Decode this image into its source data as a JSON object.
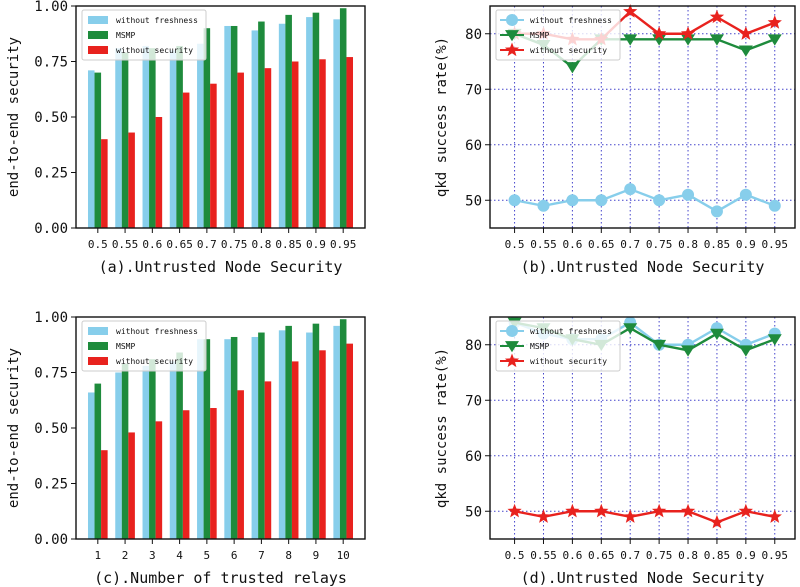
{
  "colors": {
    "freshness": "#87CEEB",
    "msmp": "#1E8B3C",
    "security": "#E8221E",
    "grid": "#4444CC",
    "frame": "#111111"
  },
  "chart_data": [
    {
      "id": "a",
      "type": "bar",
      "categories": [
        "0.5",
        "0.55",
        "0.6",
        "0.65",
        "0.7",
        "0.75",
        "0.8",
        "0.85",
        "0.9",
        "0.95"
      ],
      "series": [
        {
          "name": "without freshness",
          "values": [
            0.71,
            0.81,
            0.82,
            0.8,
            0.83,
            0.91,
            0.89,
            0.92,
            0.95,
            0.94
          ]
        },
        {
          "name": "MSMP",
          "values": [
            0.7,
            0.79,
            0.81,
            0.82,
            0.9,
            0.91,
            0.93,
            0.96,
            0.97,
            0.99
          ]
        },
        {
          "name": "without security",
          "values": [
            0.4,
            0.43,
            0.5,
            0.61,
            0.65,
            0.7,
            0.72,
            0.75,
            0.76,
            0.77
          ]
        }
      ],
      "title": "",
      "xlabel": "(a).Untrusted Node Security",
      "ylabel": "end-to-end security",
      "ylim": [
        0.0,
        1.0
      ],
      "yticks": [
        "0.00",
        "0.25",
        "0.50",
        "0.75",
        "1.00"
      ],
      "legend": "top-left",
      "grid": false
    },
    {
      "id": "b",
      "type": "line",
      "x_ticks": [
        "0.5",
        "0.55",
        "0.6",
        "0.65",
        "0.7",
        "0.75",
        "0.8",
        "0.85",
        "0.9",
        "0.95"
      ],
      "series": [
        {
          "name": "without freshness",
          "marker": "circle",
          "values": [
            50,
            49,
            50,
            50,
            52,
            50,
            51,
            48,
            51,
            49
          ]
        },
        {
          "name": "MSMP",
          "marker": "triangle-down",
          "values": [
            80,
            78,
            74,
            79,
            79,
            79,
            79,
            79,
            77,
            79
          ]
        },
        {
          "name": "without security",
          "marker": "star",
          "values": [
            80,
            80,
            79,
            79,
            84,
            80,
            80,
            83,
            80,
            82
          ]
        }
      ],
      "title": "",
      "xlabel": "(b).Untrusted Node Security",
      "ylabel": "qkd success rate(%)",
      "ylim": [
        45,
        85
      ],
      "yticks": [
        "50",
        "60",
        "70",
        "80"
      ],
      "legend": "top-left",
      "grid": true
    },
    {
      "id": "c",
      "type": "bar",
      "categories": [
        "1",
        "2",
        "3",
        "4",
        "5",
        "6",
        "7",
        "8",
        "9",
        "10"
      ],
      "series": [
        {
          "name": "without freshness",
          "values": [
            0.66,
            0.75,
            0.78,
            0.8,
            0.9,
            0.9,
            0.91,
            0.94,
            0.93,
            0.96
          ]
        },
        {
          "name": "MSMP",
          "values": [
            0.7,
            0.79,
            0.81,
            0.84,
            0.9,
            0.91,
            0.93,
            0.96,
            0.97,
            0.99
          ]
        },
        {
          "name": "without security",
          "values": [
            0.4,
            0.48,
            0.53,
            0.58,
            0.59,
            0.67,
            0.71,
            0.8,
            0.85,
            0.88
          ]
        }
      ],
      "title": "",
      "xlabel": "(c).Number of trusted relays",
      "ylabel": "end-to-end security",
      "ylim": [
        0.0,
        1.0
      ],
      "yticks": [
        "0.00",
        "0.25",
        "0.50",
        "0.75",
        "1.00"
      ],
      "legend": "top-left",
      "grid": false
    },
    {
      "id": "d",
      "type": "line",
      "x_ticks": [
        "0.5",
        "0.55",
        "0.6",
        "0.65",
        "0.7",
        "0.75",
        "0.8",
        "0.85",
        "0.9",
        "0.95"
      ],
      "series": [
        {
          "name": "without freshness",
          "marker": "circle",
          "values": [
            84,
            82,
            81,
            81,
            84,
            80,
            80,
            83,
            80,
            82
          ]
        },
        {
          "name": "MSMP",
          "marker": "triangle-down",
          "values": [
            84,
            83,
            81,
            80,
            83,
            80,
            79,
            82,
            79,
            81
          ]
        },
        {
          "name": "without security",
          "marker": "star",
          "values": [
            50,
            49,
            50,
            50,
            49,
            50,
            50,
            48,
            50,
            49
          ]
        }
      ],
      "title": "",
      "xlabel": "(d).Untrusted Node Security",
      "ylabel": "qkd success rate(%)",
      "ylim": [
        45,
        85
      ],
      "yticks": [
        "50",
        "60",
        "70",
        "80"
      ],
      "legend": "top-left",
      "grid": true
    }
  ]
}
